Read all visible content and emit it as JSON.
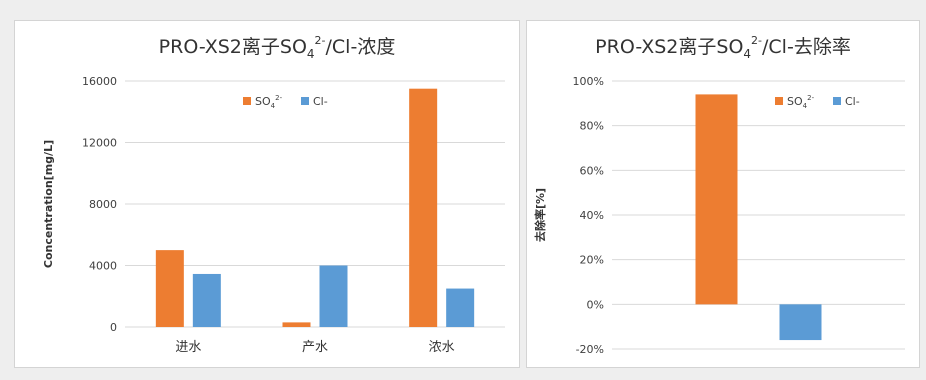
{
  "colors": {
    "so4": "#ED7D31",
    "cl": "#5B9BD5"
  },
  "chart_data": [
    {
      "type": "bar",
      "title": {
        "main": "PRO-XS2离子SO",
        "sub": "4",
        "sup": "2-",
        "tail": "/Cl-浓度"
      },
      "ylabel": "Concentration[mg/L]",
      "xlabel": "",
      "categories": [
        "进水",
        "产水",
        "浓水"
      ],
      "ylim": [
        0,
        16000
      ],
      "yticks": [
        "0",
        "4000",
        "8000",
        "12000",
        "16000"
      ],
      "ytick_values": [
        0,
        4000,
        8000,
        12000,
        16000
      ],
      "legend_position": "top-center",
      "grid": true,
      "series": [
        {
          "name": "SO₄²⁻",
          "legend": {
            "main": "SO",
            "sub": "4",
            "sup": "2-"
          },
          "values": [
            5000,
            300,
            15500
          ]
        },
        {
          "name": "Cl-",
          "legend": {
            "main": "Cl-"
          },
          "values": [
            3450,
            4000,
            2500
          ]
        }
      ]
    },
    {
      "type": "bar",
      "title": {
        "main": "PRO-XS2离子SO",
        "sub": "4",
        "sup": "2-",
        "tail": "/Cl-去除率"
      },
      "ylabel": "去除率[%]",
      "xlabel": "",
      "categories": [
        ""
      ],
      "ylim": [
        -20,
        100
      ],
      "yticks": [
        "-20%",
        "0%",
        "20%",
        "40%",
        "60%",
        "80%",
        "100%"
      ],
      "ytick_values": [
        -20,
        0,
        20,
        40,
        60,
        80,
        100
      ],
      "legend_position": "top-right",
      "grid": true,
      "series": [
        {
          "name": "SO₄²⁻",
          "legend": {
            "main": "SO",
            "sub": "4",
            "sup": "2-"
          },
          "values": [
            94
          ]
        },
        {
          "name": "Cl-",
          "legend": {
            "main": "Cl-"
          },
          "values": [
            -16
          ]
        }
      ]
    }
  ]
}
